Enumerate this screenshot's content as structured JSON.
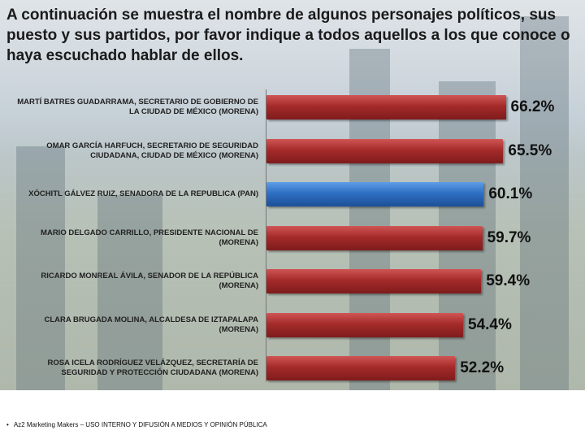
{
  "title": "A continuación se muestra el nombre de algunos personajes políticos, sus puesto y sus partidos, por favor indique a todos aquellos a los que conoce o haya escuchado hablar de ellos.",
  "footer": {
    "bullet": "•",
    "text": "Az2 Marketing Makers – USO INTERNO Y DIFUSIÓN A MEDIOS Y OPINIÓN PÚBLICA"
  },
  "chart_data": {
    "type": "bar",
    "orientation": "horizontal",
    "categories": [
      "MARTÍ BATRES GUADARRAMA, SECRETARIO DE GOBIERNO DE LA CIUDAD DE MÉXICO (MORENA)",
      "OMAR GARCÍA HARFUCH, SECRETARIO DE SEGURIDAD CIUDADANA, CIUDAD DE MÉXICO (MORENA)",
      "XÓCHITL GÁLVEZ RUIZ, SENADORA DE LA REPUBLICA (PAN)",
      "MARIO DELGADO CARRILLO, PRESIDENTE NACIONAL DE (MORENA)",
      "RICARDO MONREAL ÁVILA, SENADOR DE LA REPÚBLICA (MORENA)",
      "CLARA BRUGADA MOLINA, ALCALDESA DE IZTAPALAPA (MORENA)",
      "ROSA ICELA RODRÍGUEZ VELÁZQUEZ, SECRETARÍA DE SEGURIDAD Y PROTECCIÓN CIUDADANA (MORENA)"
    ],
    "values": [
      66.2,
      65.5,
      60.1,
      59.7,
      59.4,
      54.4,
      52.2
    ],
    "value_labels": [
      "66.2%",
      "65.5%",
      "60.1%",
      "59.7%",
      "59.4%",
      "54.4%",
      "52.2%"
    ],
    "colors": [
      "#a52a2a",
      "#a52a2a",
      "#2e6fc4",
      "#a52a2a",
      "#a52a2a",
      "#a52a2a",
      "#a52a2a"
    ],
    "xlim": [
      0,
      100
    ],
    "grid": false,
    "legend": "none"
  }
}
